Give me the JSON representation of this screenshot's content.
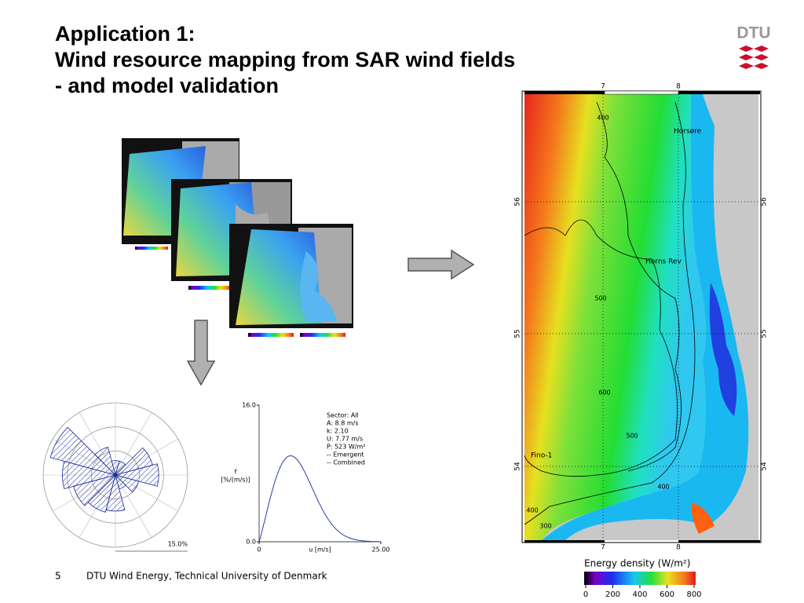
{
  "header": {
    "title_lines": [
      "Application 1:",
      "Wind resource mapping from SAR wind fields",
      "- and model validation"
    ],
    "logo": "DTU"
  },
  "footer": {
    "page": "5",
    "text": "DTU Wind Energy, Technical University of Denmark"
  },
  "map": {
    "lon_labels": [
      "7",
      "8"
    ],
    "lat_labels": [
      "56",
      "55",
      "54"
    ],
    "places": [
      "Horsøre",
      "Horns Rev",
      "Fino-1"
    ],
    "contour_labels": [
      "400",
      "500",
      "600",
      "500",
      "400",
      "400",
      "300"
    ],
    "colorbar": {
      "title": "Energy density (W/m²)",
      "ticks": [
        0,
        200,
        400,
        600,
        800
      ]
    }
  },
  "wind_rose": {
    "sectors": [
      3,
      3,
      8,
      9,
      5,
      3,
      7.5,
      8,
      9,
      11,
      14,
      6
    ],
    "rlim": [
      0,
      15
    ],
    "rticks": [
      {
        "value": 15,
        "label": "15.0%"
      }
    ]
  },
  "weibull": {
    "xlim": [
      0,
      25
    ],
    "ylim": [
      0,
      16
    ],
    "xticks": [
      0,
      {
        "value": 25,
        "label": "25.00"
      }
    ],
    "yticks": [
      {
        "value": 0,
        "label": "0.0"
      },
      {
        "value": 16,
        "label": "16.0"
      }
    ],
    "xlabel": "u [m/s]",
    "ylabel_lines": [
      "f",
      "[%/(m/s)]"
    ],
    "legend": [
      "Sector: All",
      "A: 8.8 m/s",
      "k: 2.10",
      "U: 7.77 m/s",
      "P: 523 W/m²",
      "-- Emergent",
      "-- Combined"
    ],
    "A": 8.8,
    "k": 2.1
  }
}
